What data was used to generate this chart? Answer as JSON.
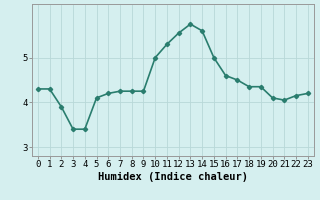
{
  "x": [
    0,
    1,
    2,
    3,
    4,
    5,
    6,
    7,
    8,
    9,
    10,
    11,
    12,
    13,
    14,
    15,
    16,
    17,
    18,
    19,
    20,
    21,
    22,
    23
  ],
  "y": [
    4.3,
    4.3,
    3.9,
    3.4,
    3.4,
    4.1,
    4.2,
    4.25,
    4.25,
    4.25,
    5.0,
    5.3,
    5.55,
    5.75,
    5.6,
    5.0,
    4.6,
    4.5,
    4.35,
    4.35,
    4.1,
    4.05,
    4.15,
    4.2
  ],
  "line_color": "#2a7d6e",
  "marker": "D",
  "marker_size": 2.2,
  "bg_color": "#d5efef",
  "grid_color": "#b8d8d8",
  "xlabel": "Humidex (Indice chaleur)",
  "ylim": [
    2.8,
    6.2
  ],
  "yticks": [
    3,
    4,
    5
  ],
  "xticks": [
    0,
    1,
    2,
    3,
    4,
    5,
    6,
    7,
    8,
    9,
    10,
    11,
    12,
    13,
    14,
    15,
    16,
    17,
    18,
    19,
    20,
    21,
    22,
    23
  ],
  "line_width": 1.2,
  "xlabel_fontsize": 7.5,
  "tick_fontsize": 6.5
}
